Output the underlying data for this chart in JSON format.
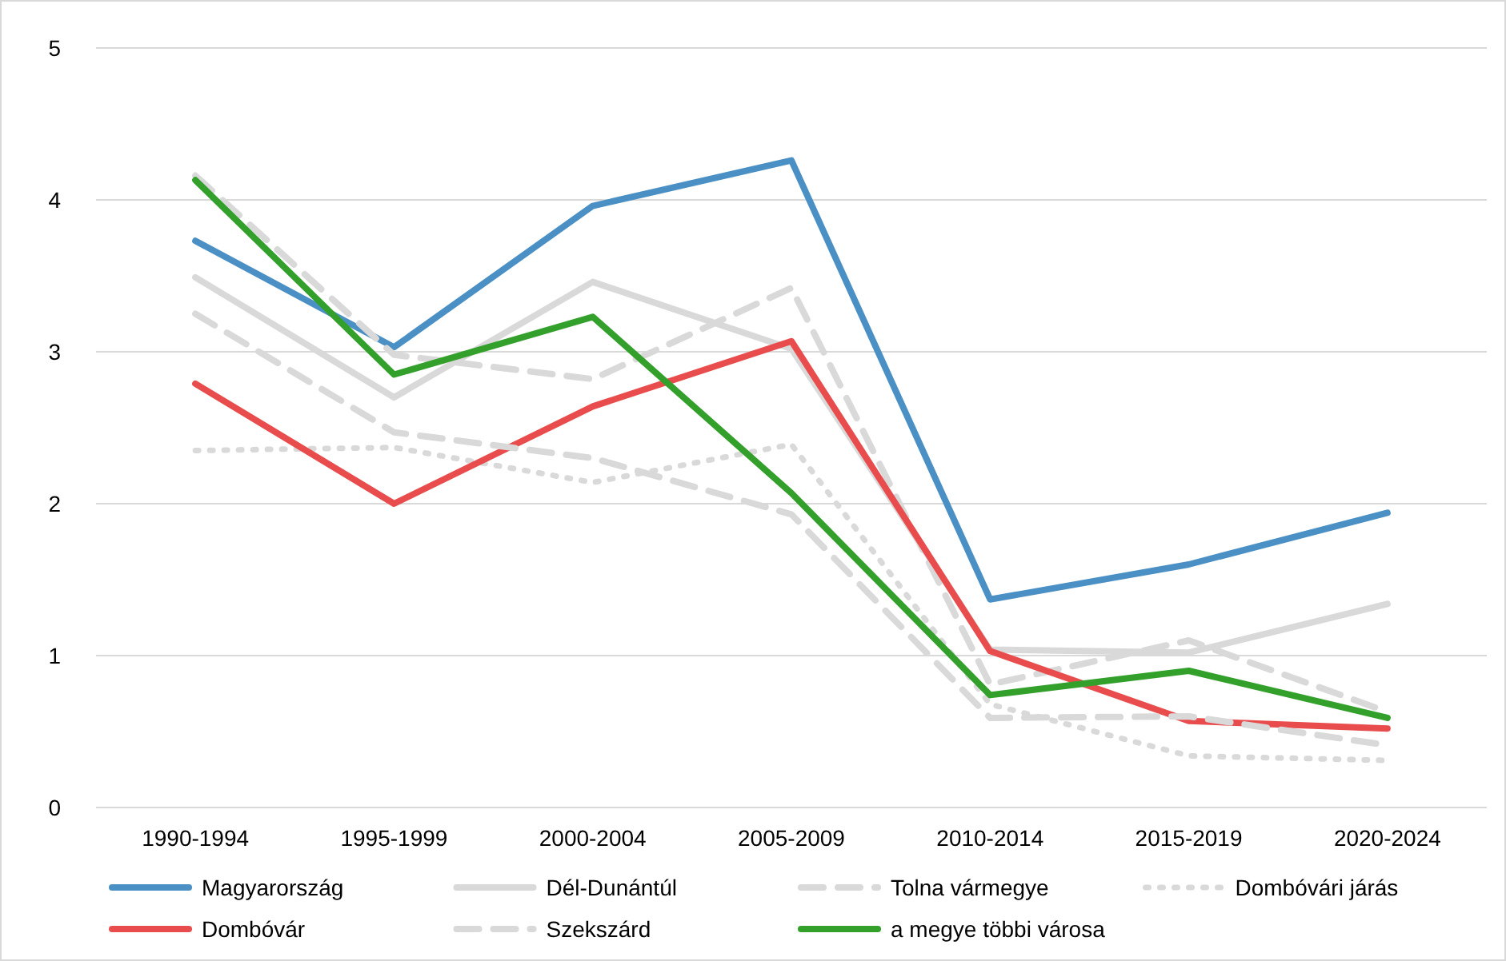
{
  "chart_data": {
    "type": "line",
    "categories": [
      "1990-1994",
      "1995-1999",
      "2000-2004",
      "2005-2009",
      "2010-2014",
      "2015-2019",
      "2020-2024"
    ],
    "ylim": [
      0,
      5
    ],
    "yticks": [
      0,
      1,
      2,
      3,
      4,
      5
    ],
    "grid": "y",
    "legend": "bottom",
    "series": [
      {
        "name": "Magyarország",
        "color": "#4a90c4",
        "line_style": "solid",
        "values": [
          3.73,
          3.03,
          3.96,
          4.26,
          1.37,
          1.6,
          1.94
        ]
      },
      {
        "name": "Dél-Dunántúl",
        "color": "#d9d9d9",
        "line_style": "solid",
        "values": [
          3.49,
          2.7,
          3.46,
          3.02,
          1.04,
          1.02,
          1.34
        ]
      },
      {
        "name": "Tolna vármegye",
        "color": "#d9d9d9",
        "line_style": "dashed",
        "values": [
          4.16,
          2.98,
          2.82,
          3.42,
          0.81,
          1.1,
          0.63
        ]
      },
      {
        "name": "Dombóvári járás",
        "color": "#d9d9d9",
        "line_style": "dotted",
        "values": [
          2.35,
          2.37,
          2.14,
          2.39,
          0.68,
          0.34,
          0.31
        ]
      },
      {
        "name": "Dombóvár",
        "color": "#e84c4c",
        "line_style": "solid",
        "values": [
          2.79,
          2.0,
          2.64,
          3.07,
          1.03,
          0.57,
          0.52
        ]
      },
      {
        "name": "Szekszárd",
        "color": "#d9d9d9",
        "line_style": "dashed",
        "values": [
          3.25,
          2.47,
          2.3,
          1.93,
          0.59,
          0.6,
          0.41
        ]
      },
      {
        "name": "a megye többi városa",
        "color": "#33a02c",
        "line_style": "solid",
        "values": [
          4.13,
          2.85,
          3.23,
          2.07,
          0.74,
          0.9,
          0.59
        ]
      }
    ]
  }
}
